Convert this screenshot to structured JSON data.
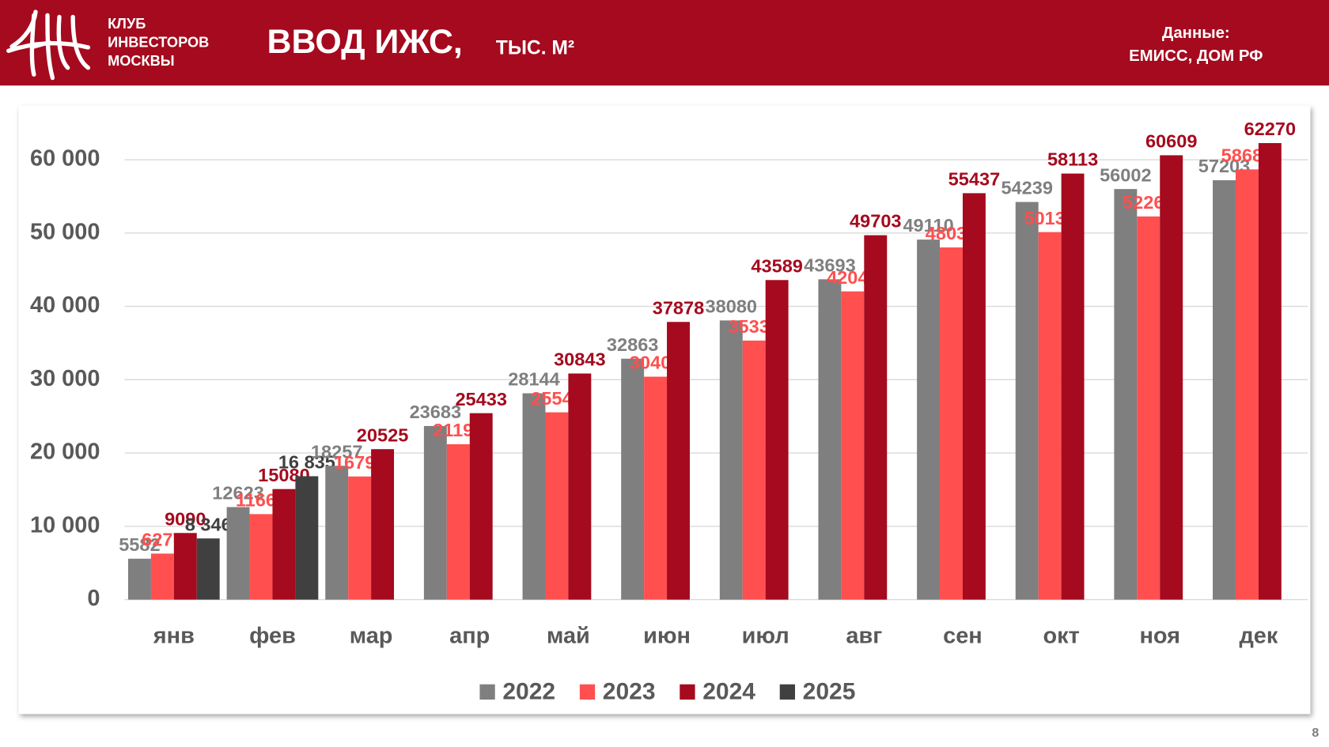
{
  "header": {
    "logo_lines": [
      "КЛУБ",
      "ИНВЕСТОРОВ",
      "МОСКВЫ"
    ],
    "title": "ВВОД ИЖС,",
    "unit": "ТЫС. М²",
    "source_label": "Данные:",
    "source": "ЕМИСС, ДОМ РФ"
  },
  "page_number": 8,
  "chart_data": {
    "type": "bar",
    "categories": [
      "янв",
      "фев",
      "мар",
      "апр",
      "май",
      "июн",
      "июл",
      "авг",
      "сен",
      "окт",
      "ноя",
      "дек"
    ],
    "series": [
      {
        "name": "2022",
        "color": "#7f7f7f",
        "values": [
          5582,
          12623,
          18257,
          23683,
          28144,
          32863,
          38080,
          43693,
          49110,
          54239,
          56002,
          57203
        ]
      },
      {
        "name": "2023",
        "color": "#ff4f4f",
        "values": [
          6277,
          11664,
          16799,
          21194,
          25548,
          30409,
          35336,
          42041,
          48036,
          50131,
          52266,
          58681
        ]
      },
      {
        "name": "2024",
        "color": "#a50a1e",
        "values": [
          9090,
          15080,
          20525,
          25433,
          30843,
          37878,
          43589,
          49703,
          55437,
          58113,
          60609,
          62270
        ]
      },
      {
        "name": "2025",
        "color": "#404040",
        "values": [
          8346,
          16835,
          null,
          null,
          null,
          null,
          null,
          null,
          null,
          null,
          null,
          null
        ],
        "value_labels": [
          "8 346",
          "16 835",
          null,
          null,
          null,
          null,
          null,
          null,
          null,
          null,
          null,
          null
        ]
      }
    ],
    "ylim": [
      0,
      67000
    ],
    "yticks": [
      0,
      {
        "value": 10000,
        "label": "10 000"
      },
      {
        "value": 20000,
        "label": "20 000"
      },
      {
        "value": 30000,
        "label": "30 000"
      },
      {
        "value": 40000,
        "label": "40 000"
      },
      {
        "value": 50000,
        "label": "50 000"
      },
      {
        "value": 60000,
        "label": "60 000"
      }
    ],
    "grid": true,
    "legend": "bottom"
  }
}
